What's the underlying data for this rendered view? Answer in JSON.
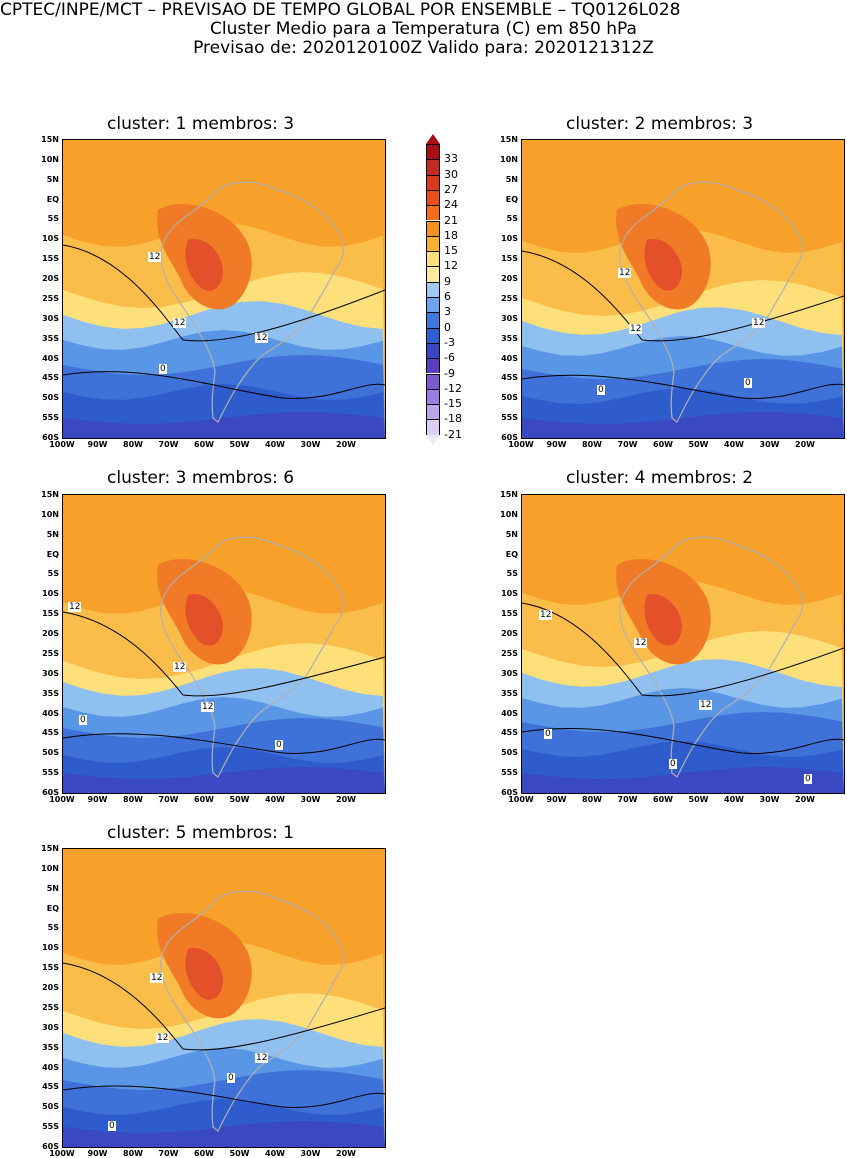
{
  "header": {
    "line1": "CPTEC/INPE/MCT – PREVISAO DE TEMPO GLOBAL POR ENSEMBLE – TQ0126L028",
    "line2": "Cluster Medio para a Temperatura (C) em 850 hPa",
    "line3": "Previsao de: 2020120100Z   Valido para: 2020121312Z"
  },
  "panels": [
    {
      "title": "cluster: 1   membros: 3",
      "contour_labels": [
        "12",
        "12",
        "12",
        "0"
      ]
    },
    {
      "title": "cluster: 2   membros: 3",
      "contour_labels": [
        "12",
        "12",
        "12",
        "0",
        "0"
      ]
    },
    {
      "title": "cluster: 3   membros: 6",
      "contour_labels": [
        "12",
        "12",
        "12",
        "0",
        "0"
      ]
    },
    {
      "title": "cluster: 4   membros: 2",
      "contour_labels": [
        "12",
        "12",
        "12",
        "0",
        "0",
        "0"
      ]
    },
    {
      "title": "cluster: 5   membros: 1",
      "contour_labels": [
        "12",
        "12",
        "12",
        "0",
        "0"
      ]
    }
  ],
  "y_ticks": [
    "15N",
    "10N",
    "5N",
    "EQ",
    "5S",
    "10S",
    "15S",
    "20S",
    "25S",
    "30S",
    "35S",
    "40S",
    "45S",
    "50S",
    "55S",
    "60S"
  ],
  "x_ticks": [
    "100W",
    "90W",
    "80W",
    "70W",
    "60W",
    "50W",
    "40W",
    "30W",
    "20W"
  ],
  "colorbar": {
    "labels": [
      "33",
      "30",
      "27",
      "24",
      "21",
      "18",
      "15",
      "12",
      "9",
      "6",
      "3",
      "0",
      "-3",
      "-6",
      "-9",
      "-12",
      "-15",
      "-18",
      "-21"
    ],
    "colors": [
      "#a80f14",
      "#c42a24",
      "#dc3a1e",
      "#ea4e1c",
      "#f26e1e",
      "#f5921e",
      "#f8b232",
      "#fde07a",
      "#fdeaa0",
      "#9fc8f2",
      "#6ea4ec",
      "#3f78dc",
      "#2e5ed0",
      "#3a46c4",
      "#5a3ec0",
      "#7e5ad0",
      "#9c7ee0",
      "#bba6ec",
      "#dccff6"
    ]
  },
  "palette": {
    "t21": "#e4502a",
    "t18": "#f07a26",
    "t15": "#f7a02a",
    "t12": "#fbbd4a",
    "t9": "#fde07a",
    "t6": "#8fc0f0",
    "t3": "#5a96e6",
    "t0": "#3f72d8",
    "tm3": "#2f5ccc",
    "tm6": "#3a48c2",
    "tm9": "#5a40c0",
    "land": "#b0b0b0"
  }
}
